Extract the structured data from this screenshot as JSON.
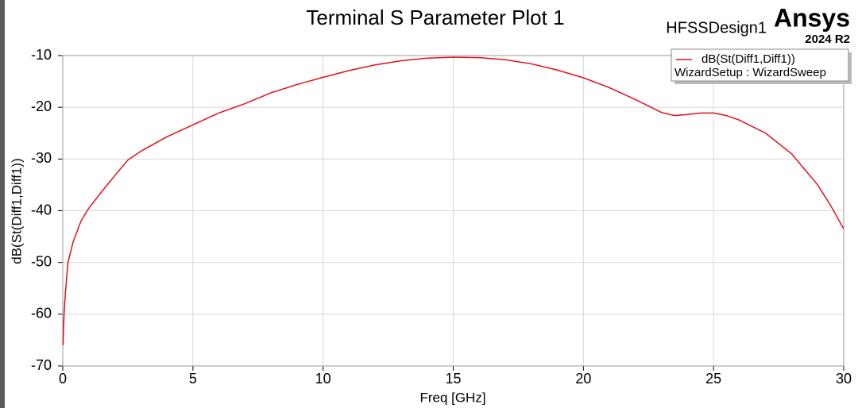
{
  "chart_data": {
    "type": "line",
    "title": "Terminal S Parameter Plot 1",
    "x_label": "Freq [GHz]",
    "y_label": "dB(St(Diff1,Diff1))",
    "x": [
      0.01,
      0.05,
      0.1,
      0.2,
      0.4,
      0.7,
      1,
      1.5,
      2,
      2.5,
      3,
      4,
      5,
      6,
      7,
      8,
      9,
      10,
      11,
      12,
      13,
      14,
      15,
      16,
      17,
      18,
      19,
      20,
      21,
      22,
      23,
      23.5,
      24,
      24.5,
      25,
      25.5,
      26,
      27,
      28,
      29,
      29.5,
      30
    ],
    "series": [
      {
        "name": "dB(St(Diff1,Diff1))",
        "color": "#e0101e",
        "values": [
          -66,
          -60,
          -56,
          -50,
          -46,
          -42,
          -39.5,
          -36.3,
          -33.2,
          -30.2,
          -28.5,
          -25.7,
          -23.4,
          -21.1,
          -19.3,
          -17.2,
          -15.6,
          -14.2,
          -12.9,
          -11.8,
          -11.0,
          -10.5,
          -10.3,
          -10.4,
          -10.8,
          -11.6,
          -12.8,
          -14.3,
          -16.2,
          -18.5,
          -21,
          -21.6,
          -21.4,
          -21.1,
          -21.1,
          -21.6,
          -22.5,
          -25,
          -29,
          -35,
          -39,
          -43.5
        ]
      }
    ],
    "legend_subtitle": "WizardSetup : WizardSweep",
    "xlim": [
      0,
      30
    ],
    "xticks": [
      0,
      5,
      10,
      15,
      20,
      25,
      30
    ],
    "ylim": [
      -70,
      -10
    ],
    "yticks": [
      -70,
      -60,
      -50,
      -40,
      -30,
      -20,
      -10
    ],
    "grid": true,
    "legend": "top-right"
  },
  "branding": {
    "design": "HFSSDesign1",
    "product": "Ansys",
    "version": "2024 R2"
  }
}
